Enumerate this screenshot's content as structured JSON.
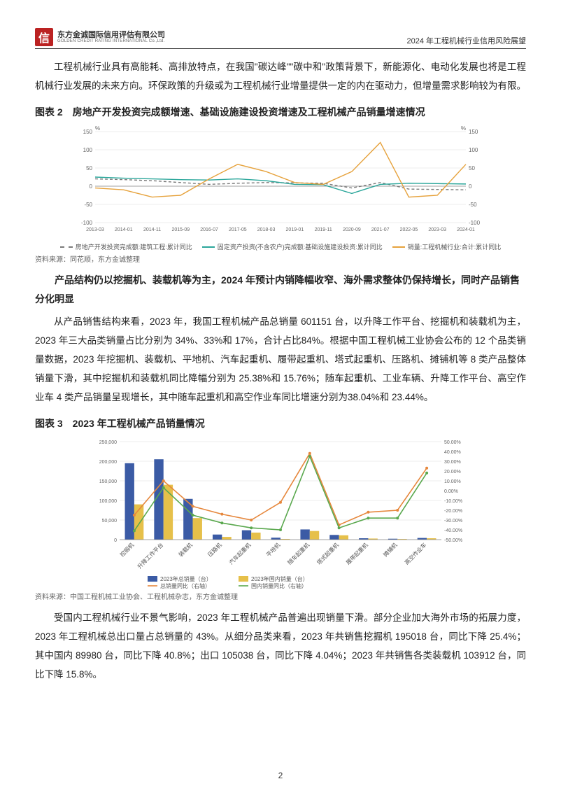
{
  "header": {
    "logo_char": "信",
    "logo_cn": "东方金诚国际信用评估有限公司",
    "logo_en": "GOLDEN CREDIT RATING INTERNATIONAL Co.,Ltd.",
    "right": "2024 年工程机械行业信用风险展望"
  },
  "para1": "工程机械行业具有高能耗、高排放特点，在我国\"碳达峰\"\"碳中和\"政策背景下，新能源化、电动化发展也将是工程机械行业发展的未来方向。环保政策的升级或为工程机械行业增量提供一定的内在驱动力，但增量需求影响较为有限。",
  "chart2": {
    "title": "图表 2　房地产开发投资完成额增速、基础设施建设投资增速及工程机械产品销量增速情况",
    "source": "资料来源：同花顺，东方金诚整理",
    "y_unit": "%",
    "x_labels": [
      "2013-03",
      "2014-01",
      "2014-11",
      "2015-09",
      "2016-07",
      "2017-05",
      "2018-03",
      "2019-01",
      "2019-11",
      "2020-09",
      "2021-07",
      "2022-05",
      "2023-03",
      "2024-01"
    ],
    "ylim": [
      -100,
      150
    ],
    "ytick_step": 50,
    "series": [
      {
        "name": "房地产开发投资完成额:建筑工程:累计同比",
        "color": "#7a7a7a",
        "dash": "4 3",
        "vals": [
          20,
          18,
          15,
          10,
          5,
          8,
          10,
          9,
          8,
          -5,
          10,
          -8,
          -9,
          -10
        ]
      },
      {
        "name": "固定资产投资(不含农户)完成额:基础设施建设投资:累计同比",
        "color": "#2aa69a",
        "vals": [
          25,
          22,
          20,
          18,
          17,
          20,
          15,
          5,
          4,
          -20,
          5,
          8,
          7,
          6
        ]
      },
      {
        "name": "销量:工程机械行业:合计:累计同比",
        "color": "#e6a23c",
        "vals": [
          -5,
          -10,
          -30,
          -25,
          20,
          60,
          40,
          10,
          5,
          40,
          120,
          -30,
          -25,
          60
        ]
      }
    ],
    "bg": "#ffffff",
    "grid": "#dddddd",
    "axis": "#888888",
    "fontsize": 8
  },
  "subhead": "产品结构仍以挖掘机、装载机等为主，2024 年预计内销降幅收窄、海外需求整体仍保持增长，同时产品销售分化明显",
  "para2": "从产品销售结构来看，2023 年，我国工程机械产品总销量 601151 台，以升降工作平台、挖掘机和装载机为主，2023 年三大品类销量占比分别为 34%、33%和 17%，合计占比84%。根据中国工程机械工业协会公布的 12 个品类销量数据，2023 年挖掘机、装载机、平地机、汽车起重机、履带起重机、塔式起重机、压路机、摊铺机等 8 类产品整体销量下滑，其中挖掘机和装载机同比降幅分别为 25.38%和 15.76%；随车起重机、工业车辆、升降工作平台、高空作业车 4 类产品销量呈现增长，其中随车起重机和高空作业车同比增速分别为38.04%和 23.44%。",
  "chart3": {
    "title": "图表 3　2023 年工程机械产品销量情况",
    "source": "资料来源：中国工程机械工业协会、工程机械杂志，东方金诚整理",
    "categories": [
      "挖掘机",
      "升降工作平台",
      "装载机",
      "压路机",
      "汽车起重机",
      "平地机",
      "随车起重机",
      "塔式起重机",
      "履带起重机",
      "摊铺机",
      "高空作业车"
    ],
    "left_ylim": [
      0,
      250000
    ],
    "left_step": 50000,
    "right_ylim": [
      -50,
      50
    ],
    "right_step": 10,
    "bars": [
      {
        "name": "2023年总销量（台）",
        "color": "#3b5ba5",
        "vals": [
          195000,
          205000,
          104000,
          13000,
          24000,
          5000,
          26000,
          12000,
          3500,
          2300,
          4300
        ]
      },
      {
        "name": "2023年国内销量（台）",
        "color": "#e6c04a",
        "vals": [
          90000,
          140000,
          55000,
          7000,
          18000,
          1800,
          22000,
          11000,
          2800,
          1700,
          3500
        ]
      }
    ],
    "lines": [
      {
        "name": "总销量同比（右轴）",
        "color": "#e6873c",
        "vals": [
          -25,
          10,
          -16,
          -24,
          -30,
          -12,
          38,
          -35,
          -22,
          -20,
          23
        ]
      },
      {
        "name": "国内销量同比（右轴）",
        "color": "#5aa84e",
        "vals": [
          -41,
          3,
          -25,
          -33,
          -38,
          -40,
          35,
          -38,
          -28,
          -28,
          18
        ]
      }
    ],
    "bg": "#ffffff",
    "grid": "#dddddd",
    "axis": "#888888",
    "fontsize": 8
  },
  "para3": "受国内工程机械行业不景气影响，2023 年工程机械产品普遍出现销量下滑。部分企业加大海外市场的拓展力度，2023 年工程机械总出口量占总销量的 43%。从细分品类来看，2023 年共销售挖掘机 195018 台，同比下降 25.4%；其中国内 89980 台，同比下降 40.8%；出口 105038 台，同比下降 4.04%；2023 年共销售各类装载机 103912 台，同比下降 15.8%。",
  "page_number": "2"
}
